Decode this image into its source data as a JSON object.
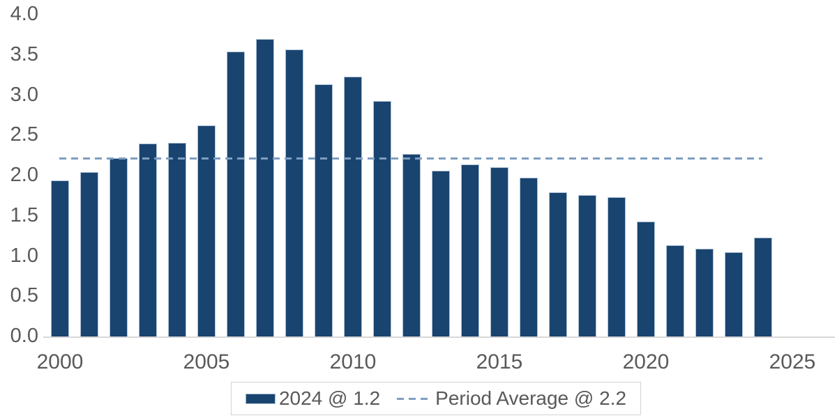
{
  "chart_data": {
    "type": "bar",
    "title": "",
    "xlabel": "",
    "ylabel": "",
    "x": [
      2000,
      2001,
      2002,
      2003,
      2004,
      2005,
      2006,
      2007,
      2008,
      2009,
      2010,
      2011,
      2012,
      2013,
      2014,
      2015,
      2016,
      2017,
      2018,
      2019,
      2020,
      2021,
      2022,
      2023,
      2024
    ],
    "values": [
      1.94,
      2.04,
      2.22,
      2.4,
      2.41,
      2.62,
      3.54,
      3.7,
      3.57,
      3.13,
      3.23,
      2.93,
      2.27,
      2.06,
      2.14,
      2.1,
      1.97,
      1.79,
      1.76,
      1.73,
      1.43,
      1.13,
      1.09,
      1.05,
      1.23
    ],
    "series_name": "2024 @ 1.2",
    "reference_line": {
      "label": "Period Average @ 2.2",
      "value": 2.2
    },
    "ylim": [
      0.0,
      4.0
    ],
    "yticks": [
      "0.0",
      "0.5",
      "1.0",
      "1.5",
      "2.0",
      "2.5",
      "3.0",
      "3.5",
      "4.0"
    ],
    "xticks": [
      "2000",
      "2005",
      "2010",
      "2015",
      "2020",
      "2025"
    ],
    "grid": false,
    "legend_position": "bottom-center",
    "colors": {
      "bar_fill": "#1A4470",
      "bar_edge": "#AEC3D5",
      "average_line": "#7E9EC0",
      "axis_text": "#595959",
      "baseline": "#D8D8D8",
      "legend_border": "#D2D2D2",
      "background": "#FFFFFF"
    }
  },
  "legend": {
    "bar_label": "2024 @ 1.2",
    "line_label": "Period Average @ 2.2"
  }
}
